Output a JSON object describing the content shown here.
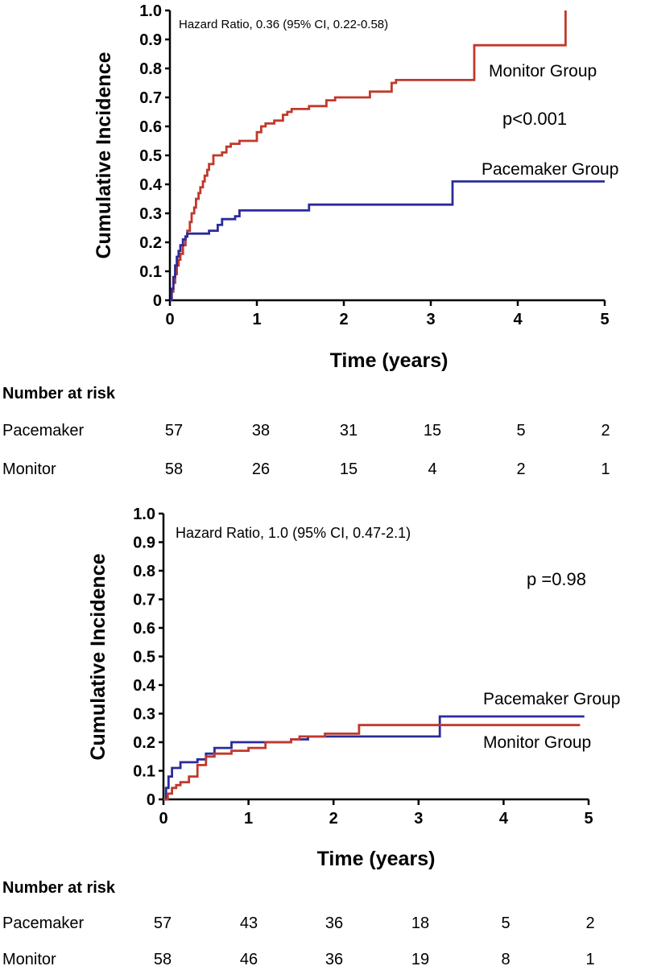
{
  "chart_data": [
    {
      "type": "line",
      "xlabel": "Time (years)",
      "ylabel": "Cumulative Incidence",
      "xlim": [
        0,
        5
      ],
      "ylim": [
        0,
        1.0
      ],
      "x_ticks": [
        "0",
        "1",
        "2",
        "3",
        "4",
        "5"
      ],
      "y_ticks": [
        "0",
        "0.1",
        "0.2",
        "0.3",
        "0.4",
        "0.5",
        "0.6",
        "0.7",
        "0.8",
        "0.9",
        "1.0"
      ],
      "hazard_ratio_text": "Hazard Ratio, 0.36 (95% CI, 0.22-0.58)",
      "p_value_text": "p<0.001",
      "series": [
        {
          "name": "Monitor Group",
          "color": "#c0392b",
          "x": [
            0,
            0.02,
            0.04,
            0.06,
            0.08,
            0.1,
            0.12,
            0.15,
            0.18,
            0.2,
            0.23,
            0.25,
            0.28,
            0.3,
            0.33,
            0.35,
            0.38,
            0.4,
            0.43,
            0.45,
            0.5,
            0.55,
            0.6,
            0.65,
            0.7,
            0.8,
            1.0,
            1.05,
            1.1,
            1.2,
            1.3,
            1.35,
            1.4,
            1.5,
            1.6,
            1.8,
            1.9,
            2.2,
            2.3,
            2.55,
            2.6,
            3.45,
            3.5,
            4.55,
            4.55
          ],
          "y": [
            0,
            0.03,
            0.06,
            0.09,
            0.12,
            0.14,
            0.16,
            0.19,
            0.22,
            0.24,
            0.27,
            0.3,
            0.32,
            0.35,
            0.37,
            0.39,
            0.41,
            0.43,
            0.45,
            0.47,
            0.5,
            0.5,
            0.51,
            0.53,
            0.54,
            0.55,
            0.58,
            0.6,
            0.61,
            0.62,
            0.64,
            0.65,
            0.66,
            0.66,
            0.67,
            0.69,
            0.7,
            0.7,
            0.72,
            0.75,
            0.76,
            0.76,
            0.88,
            0.88,
            1.0
          ]
        },
        {
          "name": "Pacemaker Group",
          "color": "#2b2b9a",
          "x": [
            0,
            0.02,
            0.04,
            0.06,
            0.08,
            0.1,
            0.12,
            0.15,
            0.18,
            0.2,
            0.3,
            0.45,
            0.55,
            0.6,
            0.75,
            0.8,
            1.6,
            3.25,
            3.25,
            5.0
          ],
          "y": [
            0,
            0.04,
            0.08,
            0.12,
            0.15,
            0.17,
            0.19,
            0.21,
            0.22,
            0.23,
            0.23,
            0.24,
            0.26,
            0.28,
            0.29,
            0.31,
            0.33,
            0.33,
            0.41,
            0.41
          ]
        }
      ],
      "risk_table": {
        "title": "Number at risk",
        "rows": [
          {
            "label": "Pacemaker",
            "values": [
              "57",
              "38",
              "31",
              "15",
              "5",
              "2"
            ]
          },
          {
            "label": "Monitor",
            "values": [
              "58",
              "26",
              "15",
              "4",
              "2",
              "1"
            ]
          }
        ]
      }
    },
    {
      "type": "line",
      "xlabel": "Time (years)",
      "ylabel": "Cumulative Incidence",
      "xlim": [
        0,
        5
      ],
      "ylim": [
        0,
        1.0
      ],
      "x_ticks": [
        "0",
        "1",
        "2",
        "3",
        "4",
        "5"
      ],
      "y_ticks": [
        "0",
        "0.1",
        "0.2",
        "0.3",
        "0.4",
        "0.5",
        "0.6",
        "0.7",
        "0.8",
        "0.9",
        "1.0"
      ],
      "hazard_ratio_text": "Hazard Ratio, 1.0 (95% CI, 0.47-2.1)",
      "p_value_text": "p =0.98",
      "series": [
        {
          "name": "Pacemaker Group",
          "color": "#2b2b9a",
          "x": [
            0,
            0.03,
            0.06,
            0.1,
            0.2,
            0.3,
            0.4,
            0.5,
            0.6,
            0.8,
            1.5,
            1.7,
            3.25,
            3.25,
            4.95
          ],
          "y": [
            0,
            0.04,
            0.08,
            0.11,
            0.13,
            0.13,
            0.14,
            0.16,
            0.18,
            0.2,
            0.21,
            0.22,
            0.22,
            0.29,
            0.29
          ]
        },
        {
          "name": "Monitor Group",
          "color": "#c0392b",
          "x": [
            0,
            0.05,
            0.1,
            0.15,
            0.2,
            0.3,
            0.4,
            0.5,
            0.6,
            0.8,
            1.0,
            1.2,
            1.5,
            1.6,
            1.9,
            2.3,
            4.9
          ],
          "y": [
            0,
            0.02,
            0.04,
            0.05,
            0.06,
            0.08,
            0.12,
            0.15,
            0.16,
            0.17,
            0.18,
            0.2,
            0.21,
            0.22,
            0.23,
            0.26,
            0.26
          ]
        }
      ],
      "risk_table": {
        "title": "Number at risk",
        "rows": [
          {
            "label": "Pacemaker",
            "values": [
              "57",
              "43",
              "36",
              "18",
              "5",
              "2"
            ]
          },
          {
            "label": "Monitor",
            "values": [
              "58",
              "46",
              "36",
              "19",
              "8",
              "1"
            ]
          }
        ]
      }
    }
  ]
}
